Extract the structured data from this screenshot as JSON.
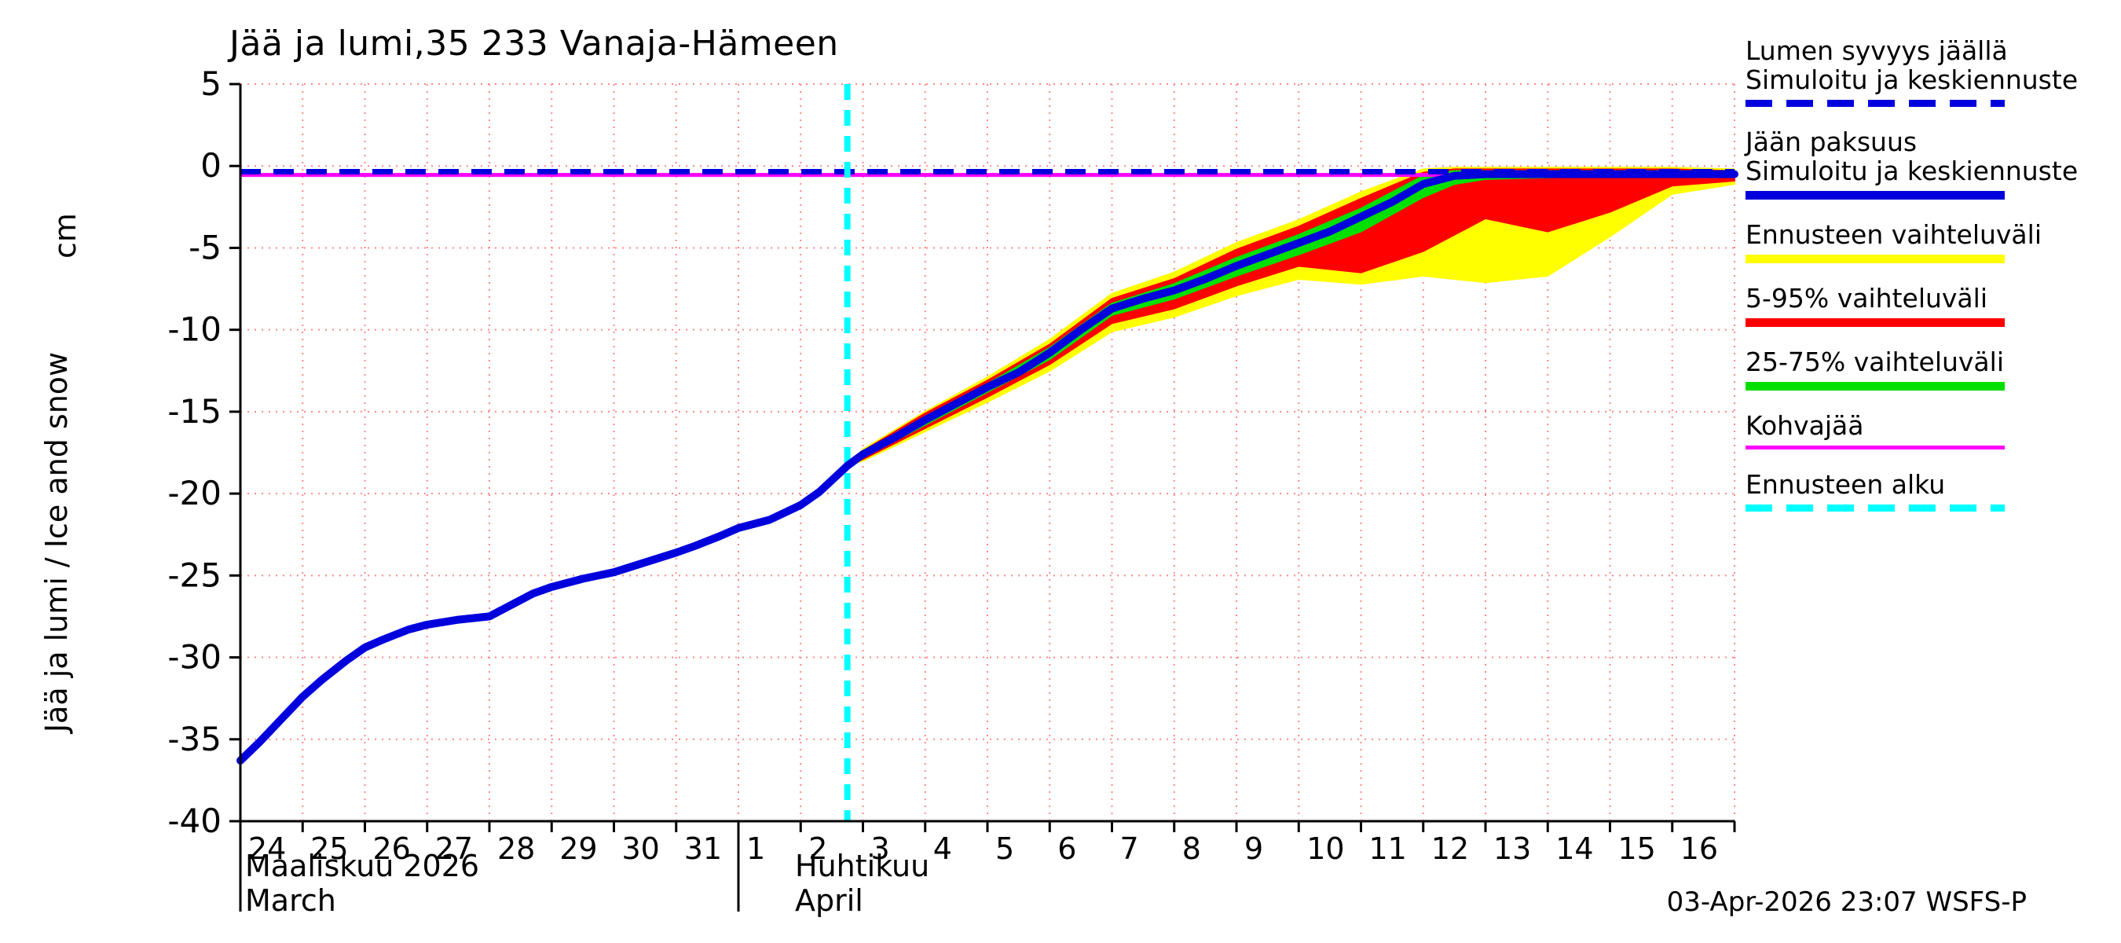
{
  "title": "Jää ja lumi,35 233 Vanaja-Hämeen",
  "y_axis": {
    "label": "Jää ja lumi / Ice and snow",
    "unit": "cm"
  },
  "x_axis": {
    "month1": {
      "name": "Maaliskuu 2026",
      "name_en": "March"
    },
    "month2": {
      "name": "Huhtikuu",
      "name_en": "April"
    }
  },
  "footer": {
    "timestamp": "03-Apr-2026 23:07 WSFS-P"
  },
  "legend": [
    {
      "lines": [
        "Lumen syvyys jäällä",
        "Simuloitu ja keskiennuste"
      ],
      "color": "#0000dd",
      "style": "dashed",
      "thickness": 9
    },
    {
      "lines": [
        "Jään paksuus",
        "Simuloitu ja keskiennuste"
      ],
      "color": "#0000dd",
      "style": "solid",
      "thickness": 11
    },
    {
      "lines": [
        "Ennusteen vaihteluväli"
      ],
      "color": "#ffff00",
      "style": "solid",
      "thickness": 11
    },
    {
      "lines": [
        "5-95% vaihteluväli"
      ],
      "color": "#ff0000",
      "style": "solid",
      "thickness": 11
    },
    {
      "lines": [
        "25-75% vaihteluväli"
      ],
      "color": "#00e000",
      "style": "solid",
      "thickness": 11
    },
    {
      "lines": [
        "Kohvajää"
      ],
      "color": "#ff00ff",
      "style": "solid",
      "thickness": 5
    },
    {
      "lines": [
        "Ennusteen alku"
      ],
      "color": "#00ffff",
      "style": "dashed",
      "thickness": 9
    }
  ],
  "chart_data": {
    "type": "line",
    "title": "Jää ja lumi,35 233 Vanaja-Hämeen",
    "ylabel": "Jää ja lumi / Ice and snow (cm)",
    "ylim": [
      -40,
      5
    ],
    "y_ticks": [
      5,
      0,
      -5,
      -10,
      -15,
      -20,
      -25,
      -30,
      -35,
      -40
    ],
    "x_domain_days": 24,
    "x_tick_labels": [
      "24",
      "25",
      "26",
      "27",
      "28",
      "29",
      "30",
      "31",
      "1",
      "2",
      "3",
      "4",
      "5",
      "6",
      "7",
      "8",
      "9",
      "10",
      "11",
      "12",
      "13",
      "14",
      "15",
      "16"
    ],
    "month_separator_days": [
      0,
      8
    ],
    "grid": {
      "on": true,
      "color": "#ff8888"
    },
    "forecast_start_day": 9.75,
    "series": [
      {
        "name": "Ennusteen vaihteluväli",
        "type": "band",
        "color": "#ffff00",
        "upper": [
          [
            9.75,
            -18.3
          ],
          [
            10,
            -17.3
          ],
          [
            11,
            -15.0
          ],
          [
            12,
            -12.9
          ],
          [
            13,
            -10.6
          ],
          [
            14,
            -7.8
          ],
          [
            15,
            -6.5
          ],
          [
            16,
            -4.7
          ],
          [
            17,
            -3.3
          ],
          [
            18,
            -1.6
          ],
          [
            19,
            -0.2
          ],
          [
            19.5,
            -0.1
          ],
          [
            20,
            -0.1
          ],
          [
            21,
            -0.1
          ],
          [
            22,
            -0.1
          ],
          [
            23,
            -0.1
          ],
          [
            24,
            -0.2
          ]
        ],
        "lower": [
          [
            9.75,
            -18.3
          ],
          [
            10,
            -18.0
          ],
          [
            11,
            -16.2
          ],
          [
            12,
            -14.4
          ],
          [
            13,
            -12.5
          ],
          [
            14,
            -10.1
          ],
          [
            15,
            -9.2
          ],
          [
            16,
            -7.9
          ],
          [
            17,
            -6.9
          ],
          [
            18,
            -7.2
          ],
          [
            19,
            -6.7
          ],
          [
            20,
            -7.1
          ],
          [
            21,
            -6.7
          ],
          [
            22,
            -4.3
          ],
          [
            23,
            -1.7
          ],
          [
            24,
            -1.1
          ]
        ]
      },
      {
        "name": "5-95% vaihteluväli",
        "type": "band",
        "color": "#ff0000",
        "upper": [
          [
            9.75,
            -18.3
          ],
          [
            10,
            -17.4
          ],
          [
            11,
            -15.1
          ],
          [
            12,
            -13.1
          ],
          [
            13,
            -10.9
          ],
          [
            14,
            -8.1
          ],
          [
            15,
            -6.9
          ],
          [
            16,
            -5.1
          ],
          [
            17,
            -3.7
          ],
          [
            18,
            -2.0
          ],
          [
            19,
            -0.4
          ],
          [
            19.5,
            -0.2
          ],
          [
            20,
            -0.2
          ],
          [
            21,
            -0.2
          ],
          [
            22,
            -0.2
          ],
          [
            23,
            -0.2
          ],
          [
            24,
            -0.3
          ]
        ],
        "lower": [
          [
            9.75,
            -18.3
          ],
          [
            10,
            -17.9
          ],
          [
            11,
            -16.0
          ],
          [
            12,
            -14.1
          ],
          [
            13,
            -12.1
          ],
          [
            14,
            -9.6
          ],
          [
            15,
            -8.7
          ],
          [
            16,
            -7.3
          ],
          [
            17,
            -6.1
          ],
          [
            18,
            -6.5
          ],
          [
            19,
            -5.2
          ],
          [
            20,
            -3.2
          ],
          [
            21,
            -4.0
          ],
          [
            22,
            -2.8
          ],
          [
            23,
            -1.2
          ],
          [
            24,
            -0.9
          ]
        ]
      },
      {
        "name": "25-75% vaihteluväli",
        "type": "band",
        "color": "#00e000",
        "upper": [
          [
            9.75,
            -18.3
          ],
          [
            10,
            -17.5
          ],
          [
            11,
            -15.3
          ],
          [
            12,
            -13.3
          ],
          [
            13,
            -11.1
          ],
          [
            14,
            -8.4
          ],
          [
            15,
            -7.2
          ],
          [
            16,
            -5.6
          ],
          [
            17,
            -4.2
          ],
          [
            18,
            -2.6
          ],
          [
            19,
            -0.6
          ],
          [
            19.5,
            -0.3
          ],
          [
            20,
            -0.3
          ],
          [
            21,
            -0.3
          ],
          [
            22,
            -0.3
          ],
          [
            23,
            -0.3
          ],
          [
            24,
            -0.3
          ]
        ],
        "lower": [
          [
            9.75,
            -18.3
          ],
          [
            10,
            -17.8
          ],
          [
            11,
            -15.8
          ],
          [
            12,
            -13.8
          ],
          [
            13,
            -11.8
          ],
          [
            14,
            -9.1
          ],
          [
            15,
            -8.1
          ],
          [
            16,
            -6.7
          ],
          [
            17,
            -5.4
          ],
          [
            18,
            -4.0
          ],
          [
            19,
            -1.9
          ],
          [
            19.5,
            -1.1
          ],
          [
            20,
            -0.8
          ],
          [
            21,
            -0.7
          ],
          [
            22,
            -0.6
          ],
          [
            23,
            -0.6
          ],
          [
            24,
            -0.6
          ]
        ]
      },
      {
        "name": "Kohvajää",
        "type": "hline",
        "color": "#ff00ff",
        "dash": false,
        "value": -0.55,
        "thickness": 5
      },
      {
        "name": "Lumen syvyys jäällä",
        "type": "hline",
        "color": "#0000dd",
        "dash": true,
        "value": -0.35,
        "thickness": 7
      },
      {
        "name": "Ennusteen alku",
        "type": "vline",
        "color": "#00ffff",
        "dash": true,
        "day": 9.75,
        "thickness": 8
      },
      {
        "name": "Jään paksuus simuloitu ja keskiennuste",
        "type": "line",
        "color": "#0000dd",
        "thickness": 10,
        "points": [
          [
            0,
            -36.3
          ],
          [
            0.3,
            -35.2
          ],
          [
            0.7,
            -33.6
          ],
          [
            1,
            -32.4
          ],
          [
            1.3,
            -31.4
          ],
          [
            1.7,
            -30.2
          ],
          [
            2,
            -29.4
          ],
          [
            2.3,
            -28.9
          ],
          [
            2.7,
            -28.3
          ],
          [
            3,
            -28.0
          ],
          [
            3.5,
            -27.7
          ],
          [
            4,
            -27.5
          ],
          [
            4.3,
            -26.9
          ],
          [
            4.7,
            -26.1
          ],
          [
            5,
            -25.7
          ],
          [
            5.5,
            -25.2
          ],
          [
            6,
            -24.8
          ],
          [
            6.5,
            -24.2
          ],
          [
            7,
            -23.6
          ],
          [
            7.3,
            -23.2
          ],
          [
            7.7,
            -22.6
          ],
          [
            8,
            -22.1
          ],
          [
            8.5,
            -21.6
          ],
          [
            9,
            -20.7
          ],
          [
            9.3,
            -19.9
          ],
          [
            9.75,
            -18.3
          ],
          [
            10,
            -17.6
          ],
          [
            10.5,
            -16.6
          ],
          [
            11,
            -15.5
          ],
          [
            11.5,
            -14.5
          ],
          [
            12,
            -13.5
          ],
          [
            12.5,
            -12.6
          ],
          [
            13,
            -11.4
          ],
          [
            13.5,
            -10.0
          ],
          [
            14,
            -8.7
          ],
          [
            14.5,
            -8.1
          ],
          [
            15,
            -7.6
          ],
          [
            15.5,
            -6.9
          ],
          [
            16,
            -6.1
          ],
          [
            16.5,
            -5.4
          ],
          [
            17,
            -4.7
          ],
          [
            17.5,
            -4.0
          ],
          [
            18,
            -3.1
          ],
          [
            18.5,
            -2.2
          ],
          [
            19,
            -1.1
          ],
          [
            19.5,
            -0.6
          ],
          [
            20,
            -0.5
          ],
          [
            21,
            -0.5
          ],
          [
            22,
            -0.5
          ],
          [
            23,
            -0.5
          ],
          [
            24,
            -0.5
          ]
        ]
      }
    ]
  }
}
